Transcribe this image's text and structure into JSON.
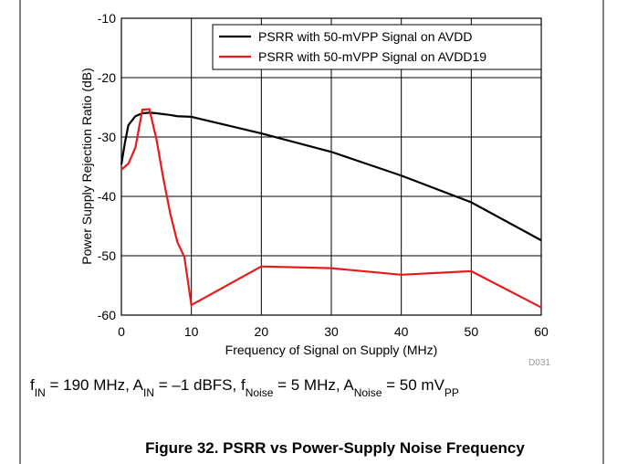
{
  "chart_data": {
    "type": "line",
    "xlabel": "Frequency of Signal on Supply (MHz)",
    "ylabel": "Power Supply Rejection Ratio (dB)",
    "xlim": [
      0,
      60
    ],
    "xticks": [
      0,
      10,
      20,
      30,
      40,
      50,
      60
    ],
    "ylim": [
      -60,
      -10
    ],
    "yticks": [
      -10,
      -20,
      -30,
      -40,
      -50,
      -60
    ],
    "grid": true,
    "legend": "upper right",
    "series": [
      {
        "name": "PSRR with 50-mVPP Signal on AVDD",
        "color": "#000000",
        "x": [
          0,
          0.5,
          1,
          2,
          3,
          4,
          5,
          7,
          8,
          10,
          20,
          30,
          40,
          50,
          60
        ],
        "values": [
          -34.6,
          -31,
          -28,
          -26.5,
          -26,
          -25.9,
          -26,
          -26.3,
          -26.5,
          -26.6,
          -29.4,
          -32.5,
          -36.5,
          -41,
          -47.4
        ]
      },
      {
        "name": "PSRR with 50-mVPP Signal on AVDD19",
        "color": "#e8191b",
        "x": [
          0,
          1,
          2,
          3,
          4,
          5,
          6,
          7,
          8,
          9,
          10,
          20,
          30,
          40,
          50,
          60
        ],
        "values": [
          -35.5,
          -34.5,
          -31.8,
          -25.4,
          -25.3,
          -30.3,
          -37,
          -43,
          -47.7,
          -50.2,
          -58.3,
          -51.8,
          -52.1,
          -53.2,
          -52.6,
          -58.7
        ]
      }
    ],
    "code": "D031",
    "note": [
      {
        "text": "f",
        "sub": false
      },
      {
        "text": "IN",
        "sub": true
      },
      {
        "text": " = 190 MHz, A",
        "sub": false
      },
      {
        "text": "IN",
        "sub": true
      },
      {
        "text": " = –1 dBFS, f",
        "sub": false
      },
      {
        "text": "Noise",
        "sub": true
      },
      {
        "text": " = 5 MHz, A",
        "sub": false
      },
      {
        "text": "Noise",
        "sub": true
      },
      {
        "text": " = 50 mV",
        "sub": false
      },
      {
        "text": "PP",
        "sub": true
      }
    ],
    "caption": "Figure 32. PSRR vs Power-Supply Noise Frequency"
  }
}
